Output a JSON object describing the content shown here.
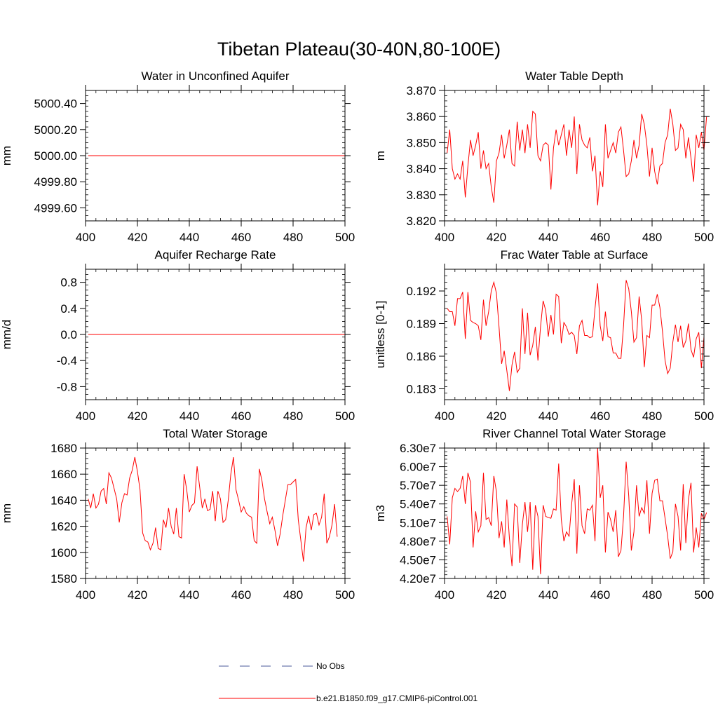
{
  "figure": {
    "title": "Tibetan Plateau(30-40N,80-100E)",
    "line_color": "#ff0000",
    "obs_color": "#4a5a9a"
  },
  "legend": {
    "obs_label": "No Obs",
    "model_label": "b.e21.B1850.f09_g17.CMIP6-piControl.001"
  },
  "chart_data": [
    {
      "id": "water-unconfined-aquifer",
      "type": "line",
      "title": "Water in Unconfined Aquifer",
      "xlabel": "",
      "ylabel": "mm",
      "xlim": [
        400,
        500
      ],
      "ylim": [
        4999.5,
        5000.5
      ],
      "xticks": [
        400,
        420,
        440,
        460,
        480,
        500
      ],
      "xticklabels": [
        "400",
        "420",
        "440",
        "460",
        "480",
        "500"
      ],
      "yticks": [
        4999.6,
        4999.8,
        5000.0,
        5000.2,
        5000.4
      ],
      "yticklabels": [
        "4999.60",
        "4999.80",
        "5000.00",
        "5000.20",
        "5000.40"
      ],
      "x_start": 401,
      "values": [
        5000,
        5000,
        5000,
        5000,
        5000,
        5000,
        5000,
        5000,
        5000,
        5000,
        5000,
        5000,
        5000,
        5000,
        5000,
        5000,
        5000,
        5000,
        5000,
        5000,
        5000,
        5000,
        5000,
        5000,
        5000,
        5000,
        5000,
        5000,
        5000,
        5000,
        5000,
        5000,
        5000,
        5000,
        5000,
        5000,
        5000,
        5000,
        5000,
        5000,
        5000,
        5000,
        5000,
        5000,
        5000,
        5000,
        5000,
        5000,
        5000,
        5000,
        5000,
        5000,
        5000,
        5000,
        5000,
        5000,
        5000,
        5000,
        5000,
        5000,
        5000,
        5000,
        5000,
        5000,
        5000,
        5000,
        5000,
        5000,
        5000,
        5000,
        5000,
        5000,
        5000,
        5000,
        5000,
        5000,
        5000,
        5000,
        5000,
        5000,
        5000,
        5000,
        5000,
        5000,
        5000,
        5000,
        5000,
        5000,
        5000,
        5000,
        5000,
        5000,
        5000,
        5000,
        5000,
        5000,
        5000,
        5000,
        5000,
        5000
      ]
    },
    {
      "id": "water-table-depth",
      "type": "line",
      "title": "Water Table Depth",
      "xlabel": "",
      "ylabel": "m",
      "xlim": [
        400,
        500
      ],
      "ylim": [
        3.82,
        3.87
      ],
      "xticks": [
        400,
        420,
        440,
        460,
        480,
        500
      ],
      "xticklabels": [
        "400",
        "420",
        "440",
        "460",
        "480",
        "500"
      ],
      "yticks": [
        3.82,
        3.83,
        3.84,
        3.85,
        3.86,
        3.87
      ],
      "yticklabels": [
        "3.820",
        "3.830",
        "3.840",
        "3.850",
        "3.860",
        "3.870"
      ],
      "x_start": 401,
      "values": [
        3.846,
        3.855,
        3.84,
        3.836,
        3.838,
        3.836,
        3.843,
        3.829,
        3.841,
        3.851,
        3.845,
        3.849,
        3.854,
        3.84,
        3.847,
        3.84,
        3.842,
        3.833,
        3.827,
        3.843,
        3.846,
        3.853,
        3.844,
        3.849,
        3.855,
        3.842,
        3.841,
        3.858,
        3.847,
        3.855,
        3.846,
        3.857,
        3.848,
        3.862,
        3.861,
        3.845,
        3.843,
        3.849,
        3.85,
        3.849,
        3.832,
        3.848,
        3.855,
        3.849,
        3.853,
        3.857,
        3.845,
        3.855,
        3.848,
        3.86,
        3.838,
        3.857,
        3.851,
        3.849,
        3.848,
        3.852,
        3.839,
        3.845,
        3.826,
        3.839,
        3.833,
        3.857,
        3.844,
        3.847,
        3.85,
        3.846,
        3.854,
        3.856,
        3.847,
        3.837,
        3.838,
        3.843,
        3.851,
        3.844,
        3.849,
        3.861,
        3.857,
        3.849,
        3.837,
        3.848,
        3.839,
        3.834,
        3.841,
        3.842,
        3.85,
        3.853,
        3.863,
        3.857,
        3.847,
        3.848,
        3.857,
        3.855,
        3.844,
        3.852,
        3.844,
        3.835,
        3.853,
        3.848,
        3.854,
        3.847,
        3.86
      ]
    },
    {
      "id": "aquifer-recharge-rate",
      "type": "line",
      "title": "Aquifer Recharge Rate",
      "xlabel": "",
      "ylabel": "mm/d",
      "xlim": [
        400,
        500
      ],
      "ylim": [
        -1.0,
        1.0
      ],
      "xticks": [
        400,
        420,
        440,
        460,
        480,
        500
      ],
      "xticklabels": [
        "400",
        "420",
        "440",
        "460",
        "480",
        "500"
      ],
      "yticks": [
        -0.8,
        -0.4,
        0.0,
        0.4,
        0.8
      ],
      "yticklabels": [
        "-0.8",
        "-0.4",
        "0.0",
        "0.4",
        "0.8"
      ],
      "x_start": 401,
      "values": [
        0,
        0,
        0,
        0,
        0,
        0,
        0,
        0,
        0,
        0,
        0,
        0,
        0,
        0,
        0,
        0,
        0,
        0,
        0,
        0,
        0,
        0,
        0,
        0,
        0,
        0,
        0,
        0,
        0,
        0,
        0,
        0,
        0,
        0,
        0,
        0,
        0,
        0,
        0,
        0,
        0,
        0,
        0,
        0,
        0,
        0,
        0,
        0,
        0,
        0,
        0,
        0,
        0,
        0,
        0,
        0,
        0,
        0,
        0,
        0,
        0,
        0,
        0,
        0,
        0,
        0,
        0,
        0,
        0,
        0,
        0,
        0,
        0,
        0,
        0,
        0,
        0,
        0,
        0,
        0,
        0,
        0,
        0,
        0,
        0,
        0,
        0,
        0,
        0,
        0,
        0,
        0,
        0,
        0,
        0,
        0,
        0,
        0,
        0,
        0
      ]
    },
    {
      "id": "frac-water-table-surface",
      "type": "line",
      "title": "Frac Water Table at Surface",
      "xlabel": "",
      "ylabel": "unitless [0-1]",
      "xlim": [
        400,
        500
      ],
      "ylim": [
        0.182,
        0.194
      ],
      "xticks": [
        400,
        420,
        440,
        460,
        480,
        500
      ],
      "xticklabels": [
        "400",
        "420",
        "440",
        "460",
        "480",
        "500"
      ],
      "yticks": [
        0.183,
        0.186,
        0.189,
        0.192
      ],
      "yticklabels": [
        "0.183",
        "0.186",
        "0.189",
        "0.192"
      ],
      "x_start": 401,
      "values": [
        0.1904,
        0.1901,
        0.1901,
        0.1888,
        0.1913,
        0.1913,
        0.1919,
        0.1876,
        0.1919,
        0.1893,
        0.1891,
        0.189,
        0.1888,
        0.1875,
        0.1912,
        0.1888,
        0.1901,
        0.192,
        0.1928,
        0.1918,
        0.1887,
        0.1853,
        0.1865,
        0.1847,
        0.1828,
        0.1852,
        0.1864,
        0.1845,
        0.1849,
        0.1904,
        0.1862,
        0.19,
        0.1861,
        0.187,
        0.1887,
        0.1856,
        0.1887,
        0.1911,
        0.1902,
        0.1878,
        0.1898,
        0.188,
        0.1917,
        0.1915,
        0.1872,
        0.1891,
        0.1887,
        0.188,
        0.1882,
        0.1879,
        0.1862,
        0.1888,
        0.1893,
        0.1879,
        0.1879,
        0.1877,
        0.1878,
        0.1904,
        0.1927,
        0.1888,
        0.1874,
        0.1901,
        0.1878,
        0.1877,
        0.1863,
        0.1863,
        0.1858,
        0.1858,
        0.1888,
        0.193,
        0.1922,
        0.1901,
        0.1873,
        0.1877,
        0.1915,
        0.1893,
        0.185,
        0.1879,
        0.1877,
        0.1907,
        0.1907,
        0.1917,
        0.1905,
        0.1883,
        0.1856,
        0.1844,
        0.1849,
        0.1873,
        0.1889,
        0.1873,
        0.1888,
        0.1868,
        0.1874,
        0.189,
        0.1866,
        0.1859,
        0.1876,
        0.1882,
        0.1849,
        0.1878
      ]
    },
    {
      "id": "total-water-storage",
      "type": "line",
      "title": "Total Water Storage",
      "xlabel": "",
      "ylabel": "mm",
      "xlim": [
        400,
        500
      ],
      "ylim": [
        1580,
        1680
      ],
      "xticks": [
        400,
        420,
        440,
        460,
        480,
        500
      ],
      "xticklabels": [
        "400",
        "420",
        "440",
        "460",
        "480",
        "500"
      ],
      "yticks": [
        1580,
        1600,
        1620,
        1640,
        1660,
        1680
      ],
      "yticklabels": [
        "1580",
        "1600",
        "1620",
        "1640",
        "1660",
        "1680"
      ],
      "x_start": 401,
      "values": [
        1641,
        1634,
        1645,
        1634,
        1637,
        1647,
        1649,
        1637,
        1661,
        1657,
        1649,
        1641,
        1623,
        1638,
        1645,
        1644,
        1657,
        1663,
        1673,
        1662,
        1648,
        1615,
        1609,
        1608,
        1602,
        1607,
        1619,
        1603,
        1602,
        1625,
        1619,
        1634,
        1620,
        1614,
        1634,
        1612,
        1611,
        1660,
        1648,
        1631,
        1636,
        1638,
        1666,
        1650,
        1634,
        1641,
        1632,
        1633,
        1647,
        1624,
        1647,
        1641,
        1623,
        1625,
        1640,
        1660,
        1673,
        1648,
        1640,
        1631,
        1635,
        1630,
        1628,
        1627,
        1609,
        1607,
        1664,
        1655,
        1641,
        1631,
        1622,
        1627,
        1617,
        1605,
        1614,
        1628,
        1640,
        1652,
        1652,
        1654,
        1656,
        1625,
        1609,
        1593,
        1619,
        1628,
        1617,
        1629,
        1630,
        1621,
        1627,
        1645,
        1607,
        1612,
        1621,
        1637,
        1612
      ]
    },
    {
      "id": "river-channel-storage",
      "type": "line",
      "title": "River Channel Total Water Storage",
      "xlabel": "",
      "ylabel": "m3",
      "xlim": [
        400,
        500
      ],
      "ylim": [
        42000000,
        63000000
      ],
      "xticks": [
        400,
        420,
        440,
        460,
        480,
        500
      ],
      "xticklabels": [
        "400",
        "420",
        "440",
        "460",
        "480",
        "500"
      ],
      "yticks": [
        42000000,
        45000000,
        48000000,
        51000000,
        54000000,
        57000000,
        60000000,
        63000000
      ],
      "yticklabels": [
        "4.20e7",
        "4.50e7",
        "4.80e7",
        "5.10e7",
        "5.40e7",
        "5.70e7",
        "6.00e7",
        "6.30e7"
      ],
      "x_start": 401,
      "values": [
        52000000,
        47500000,
        55000000,
        56500000,
        56000000,
        56500000,
        58500000,
        54000000,
        59000000,
        57500000,
        47000000,
        52800000,
        49500000,
        50500000,
        59000000,
        51500000,
        51800000,
        50500000,
        58500000,
        56000000,
        48500000,
        51200000,
        47000000,
        54700000,
        48500000,
        44000000,
        54000000,
        53500000,
        44500000,
        50700000,
        54300000,
        49500000,
        54300000,
        43400000,
        53800000,
        52000000,
        42700000,
        53800000,
        52000000,
        51800000,
        51700000,
        53200000,
        53000000,
        60500000,
        51500000,
        48000000,
        49500000,
        48800000,
        54000000,
        58000000,
        46000000,
        57000000,
        50500000,
        49200000,
        53200000,
        53000000,
        53800000,
        48000000,
        63000000,
        55000000,
        57000000,
        46200000,
        52700000,
        51500000,
        49500000,
        53000000,
        45500000,
        46500000,
        52000000,
        60800000,
        55300000,
        46500000,
        49500000,
        57000000,
        52000000,
        53400000,
        52500000,
        57800000,
        49200000,
        55700000,
        57800000,
        58000000,
        54500000,
        54500000,
        51700000,
        48800000,
        45200000,
        46300000,
        54000000,
        52000000,
        46500000,
        57200000,
        47700000,
        54700000,
        57400000,
        46200000,
        50200000,
        47000000,
        52500000,
        51500000,
        52600000
      ]
    }
  ]
}
